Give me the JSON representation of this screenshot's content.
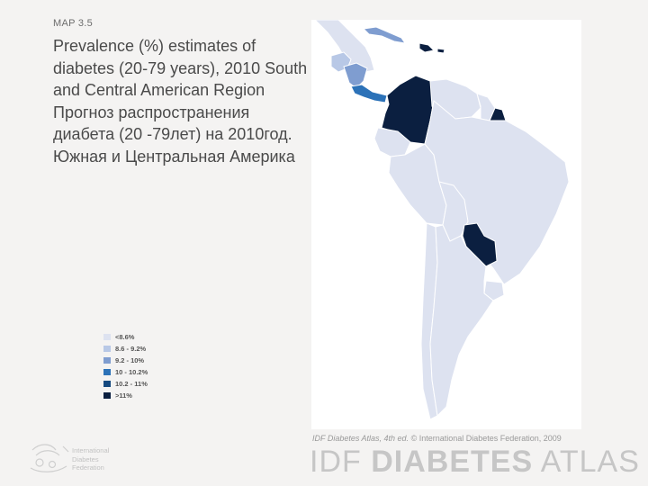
{
  "header": {
    "map_label": "MAP 3.5",
    "title": "Prevalence (%) estimates of diabetes (20-79 years), 2010 South and Central American Region Прогноз распространения диабета (20 -79лет) на 2010год. Южная и Центральная Америка"
  },
  "legend": {
    "items": [
      {
        "label": "<8.6%",
        "color": "#dde2f0"
      },
      {
        "label": "8.6 - 9.2%",
        "color": "#b8c8e6"
      },
      {
        "label": "9.2 - 10%",
        "color": "#7f9dd0"
      },
      {
        "label": "10 - 10.2%",
        "color": "#2c72b8"
      },
      {
        "label": "10.2 - 11%",
        "color": "#164a80"
      },
      {
        "label": ">11%",
        "color": "#0b1f40"
      }
    ]
  },
  "footer": {
    "credit_italic": "IDF Diabetes Atlas, 4th ed.",
    "credit_rest": "© International Diabetes Federation, 2009",
    "atlas_prefix": "IDF ",
    "atlas_bold": "DIABETES",
    "atlas_suffix": " ATLAS",
    "logo_lines": [
      "International",
      "Diabetes",
      "Federation"
    ]
  },
  "colors": {
    "base": "#dde2f0",
    "mid": "#7f9dd0",
    "blue": "#2c72b8",
    "dark": "#0b1f40",
    "border": "#ffffff"
  }
}
